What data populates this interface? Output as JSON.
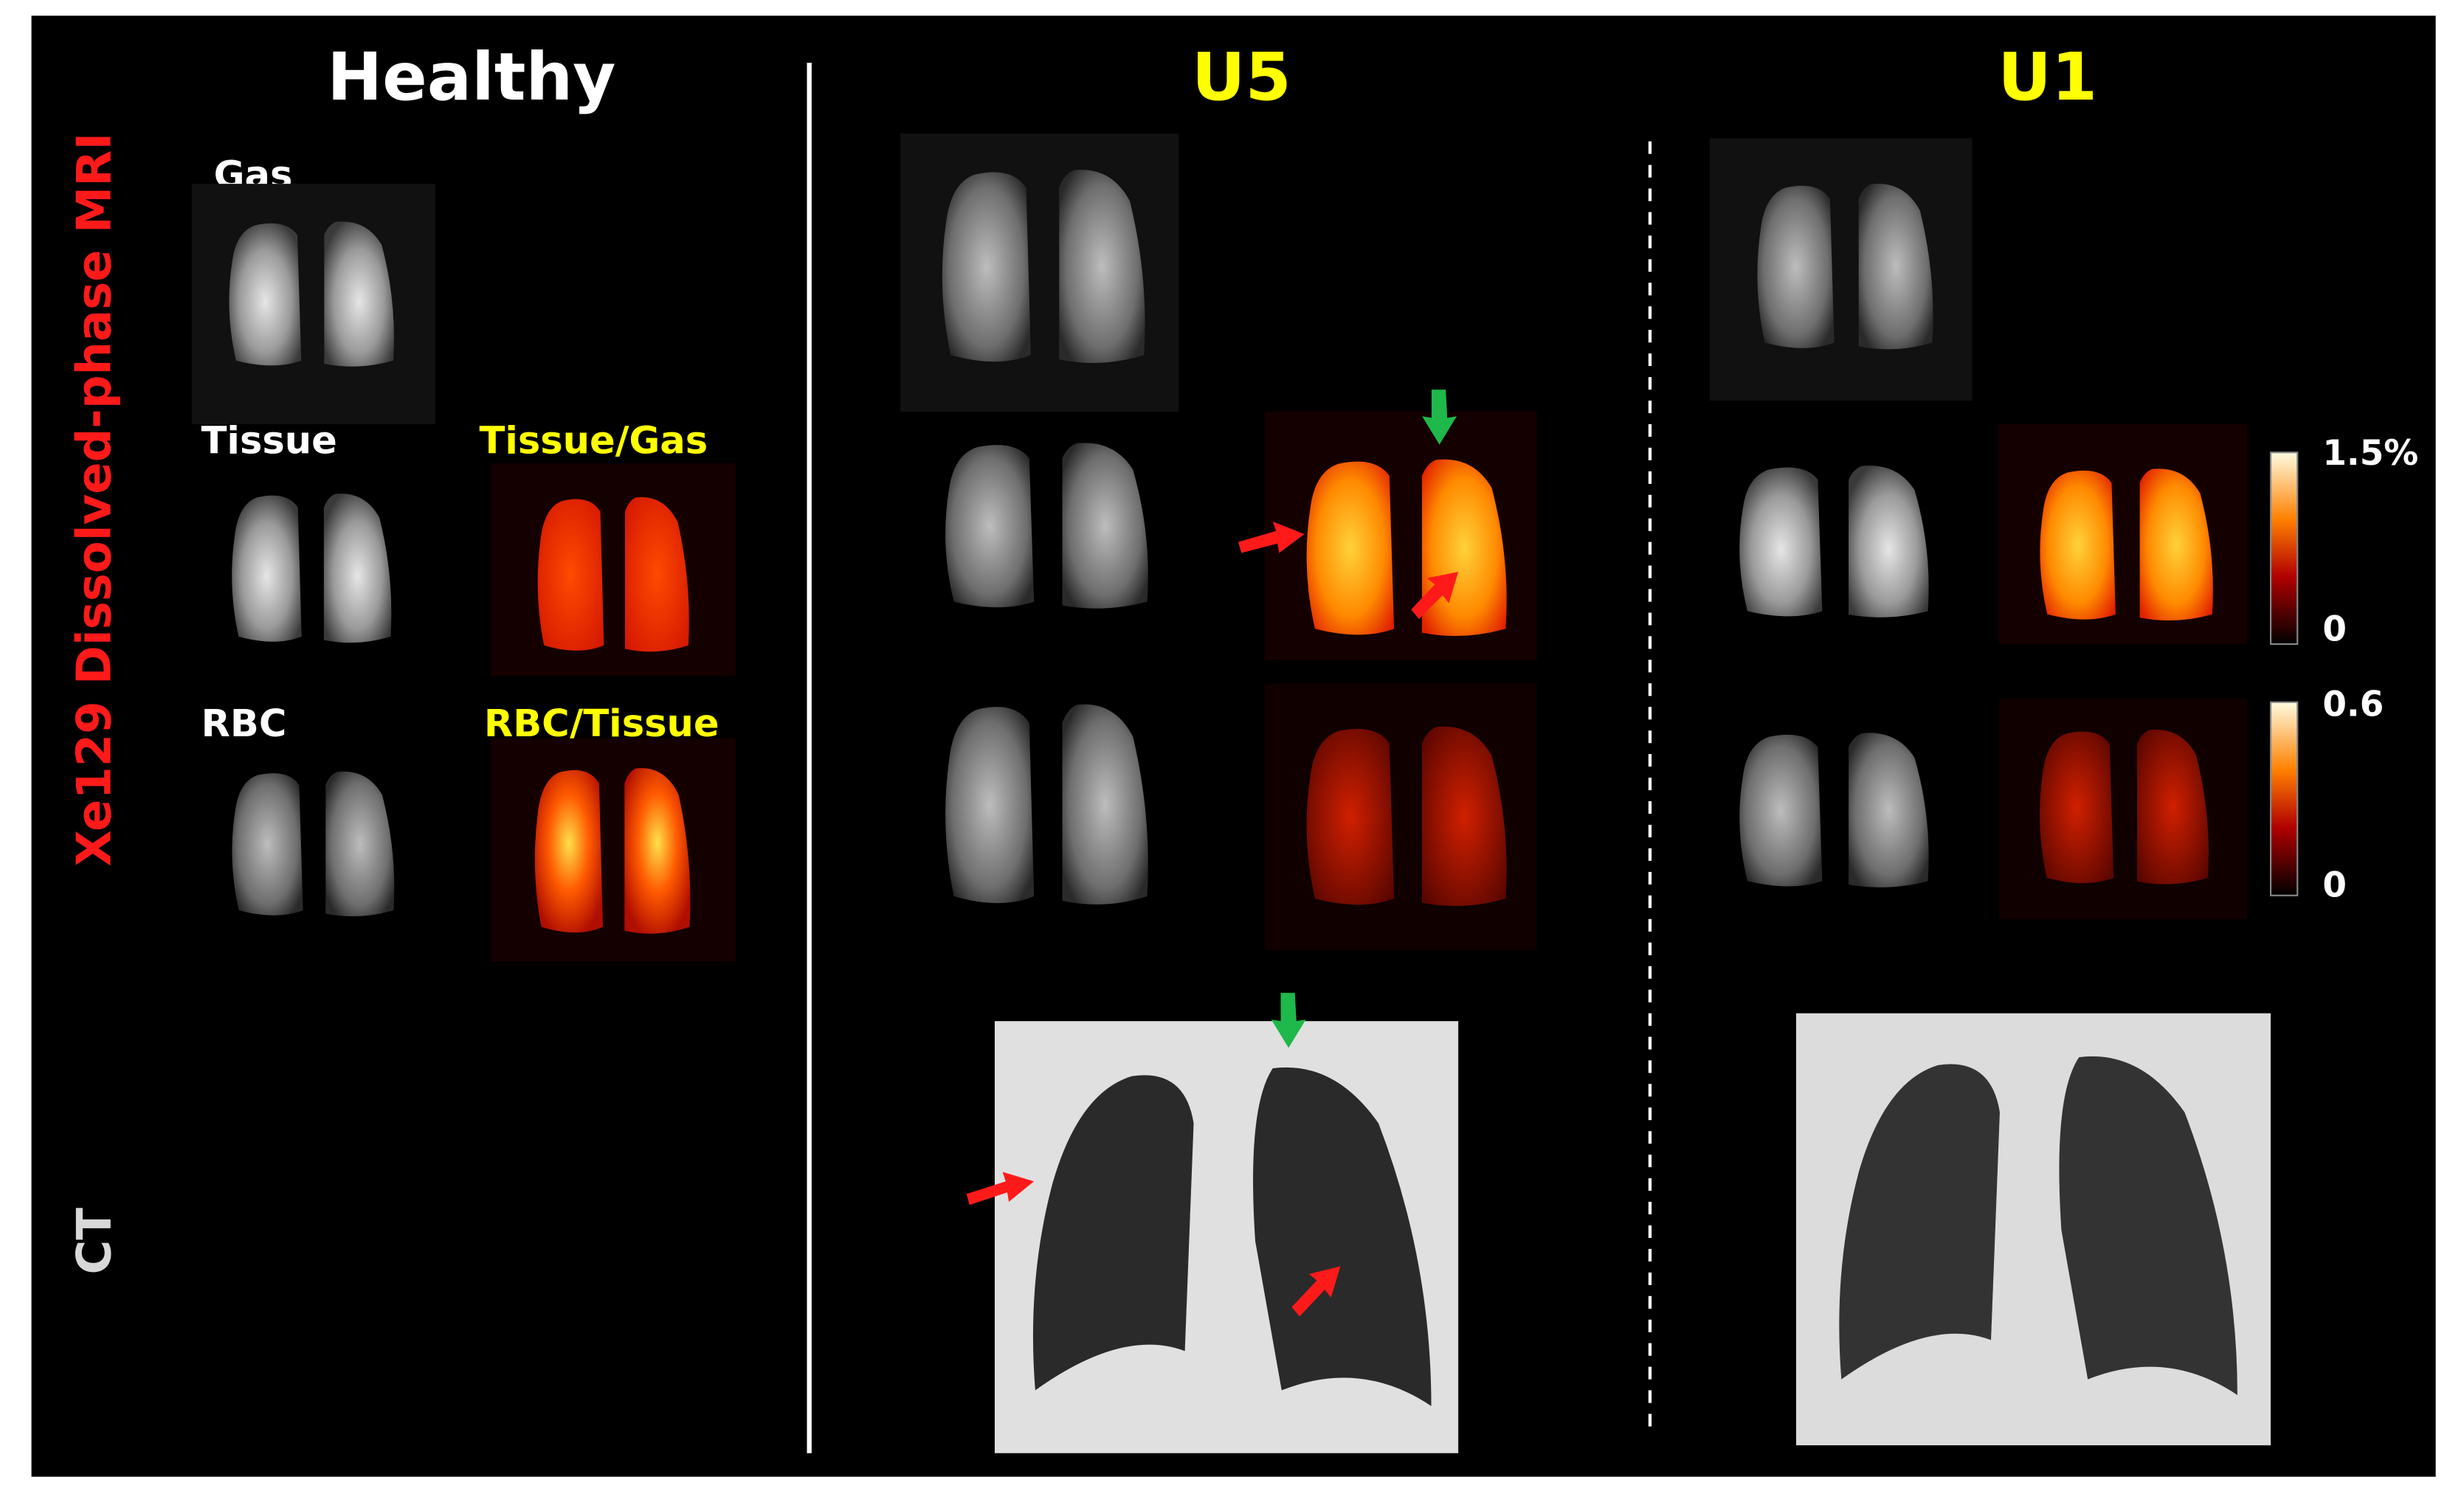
{
  "rows": {
    "mri": "Xe129 Dissolved-phase MRI",
    "ct": "CT"
  },
  "columns": {
    "healthy": "Healthy",
    "u5": "U5",
    "u1": "U1"
  },
  "panels": {
    "gas": "Gas",
    "tissue": "Tissue",
    "tissue_gas": "Tissue/Gas",
    "rbc": "RBC",
    "rbc_tissue": "RBC/Tissue"
  },
  "colorbars": [
    {
      "max": "1.5%",
      "min": "0"
    },
    {
      "max": "0.6",
      "min": "0"
    }
  ]
}
